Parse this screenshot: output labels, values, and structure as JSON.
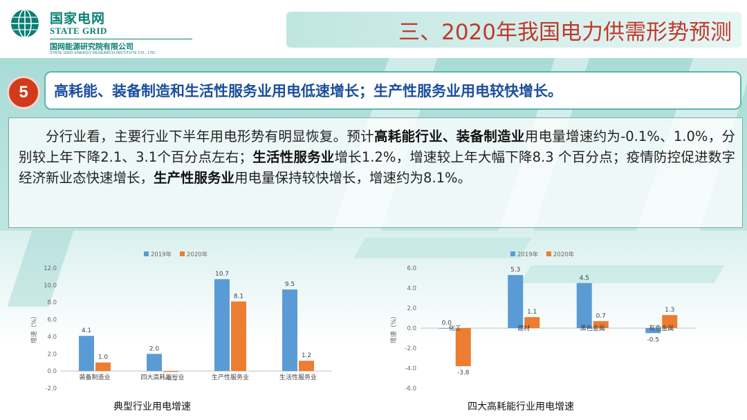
{
  "logo": {
    "cn_name": "国家电网",
    "en_name": "STATE GRID",
    "institute_cn": "国网能源研究院有限公司",
    "institute_en": "STATE GRID ENERGY RESEARCH INSTITUTE CO., LTD."
  },
  "header": {
    "title": "三、2020年我国电力供需形势预测"
  },
  "section": {
    "number": "5",
    "headline": "高耗能、装备制造和生活性服务业用电低速增长；生产性服务业用电较快增长。"
  },
  "paragraph": {
    "p1": "分行业看，主要行业下半年用电形势有明显恢复。预计",
    "b1": "高耗能行业、装备制造业",
    "p2": "用电量增速约为-0.1%、1.0%，分别较上年下降2.1、3.1个百分点左右；",
    "b2": "生活性服务业",
    "p3": "增长1.2%，增速较上年大幅下降8.3 个百分点；疫情防控促进数字经济新业态快速增长，",
    "b3": "生产性服务业",
    "p4": "用电量保持较快增长，增速约为8.1%。"
  },
  "colors": {
    "s2019": "#5b9bd5",
    "s2020": "#ed7d31",
    "accent": "#d23a1c",
    "teal": "#0a7f74"
  },
  "chart_data": [
    {
      "type": "bar",
      "title": "典型行业用电增速",
      "ylabel": "增速（%）",
      "ylim": [
        -2.0,
        12.0
      ],
      "yticks": [
        "-2.0",
        "0.0",
        "2.0",
        "4.0",
        "6.0",
        "8.0",
        "10.0",
        "12.0"
      ],
      "categories": [
        "装备制造业",
        "四大高耗能行业",
        "生产性服务业",
        "生活性服务业"
      ],
      "legend_position": "top",
      "series": [
        {
          "name": "2019年",
          "values": [
            4.1,
            2.0,
            10.7,
            9.5
          ],
          "labels": [
            "4.1",
            "2.0",
            "10.7",
            "9.5"
          ]
        },
        {
          "name": "2020年",
          "values": [
            1.0,
            -0.1,
            8.1,
            1.2
          ],
          "labels": [
            "1.0",
            "-0.1",
            "8.1",
            "1.2"
          ]
        }
      ]
    },
    {
      "type": "bar",
      "title": "四大高耗能行业用电增速",
      "ylabel": "增速（%）",
      "ylim": [
        -6.0,
        6.0
      ],
      "yticks": [
        "-6.0",
        "-4.0",
        "-2.0",
        "0.0",
        "2.0",
        "4.0",
        "6.0"
      ],
      "categories": [
        "化工",
        "建材",
        "黑色金属",
        "有色金属"
      ],
      "legend_position": "top",
      "series": [
        {
          "name": "2019年",
          "values": [
            0.0,
            5.3,
            4.5,
            -0.5
          ],
          "labels": [
            "0.0",
            "5.3",
            "4.5",
            "-0.5"
          ]
        },
        {
          "name": "2020年",
          "values": [
            -3.8,
            1.1,
            0.7,
            1.3
          ],
          "labels": [
            "-3.8",
            "1.1",
            "0.7",
            "1.3"
          ]
        }
      ]
    }
  ]
}
